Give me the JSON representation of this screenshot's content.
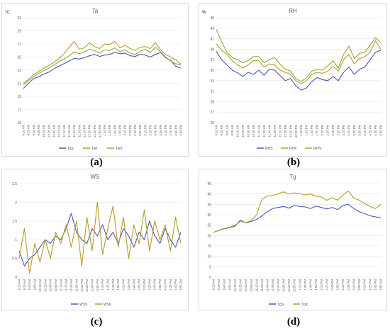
{
  "sublabels": [
    "(a)",
    "(b)",
    "(c)",
    "(d)"
  ],
  "colors": {
    "blue": "#4f57b4",
    "gold": "#b99a2a",
    "green": "#94a83a",
    "grid": "#e3e3e3",
    "text": "#595959"
  },
  "time_labels": [
    "9:10 AM",
    "9:25 AM",
    "9:40 AM",
    "9:55 AM",
    "10:10 AM",
    "10:25 AM",
    "10:40 AM",
    "10:55 AM",
    "11:10 AM",
    "11:25 AM",
    "11:40 AM",
    "11:55 AM",
    "12:10 PM",
    "12:25 PM",
    "12:40 PM",
    "12:55 PM",
    "1:10 PM",
    "1:25 PM",
    "1:40 PM",
    "1:55 PM",
    "2:10 PM",
    "2:25 PM",
    "2:40 PM",
    "2:55 PM",
    "3:10 PM",
    "3:25 PM",
    "3:40 PM",
    "3:55 PM",
    "4:10 PM",
    "4:25 PM",
    "4:40 PM",
    "4:55 PM"
  ],
  "chart_data": [
    {
      "type": "line",
      "title": "Ta",
      "unit": "°C",
      "ylim": [
        15,
        31
      ],
      "yticks": [
        15,
        17,
        19,
        21,
        23,
        25,
        27,
        29,
        31
      ],
      "grid": true,
      "legend": "bottom",
      "x": [
        "9:10 AM",
        "9:25 AM",
        "9:40 AM",
        "9:55 AM",
        "10:10 AM",
        "10:25 AM",
        "10:40 AM",
        "10:55 AM",
        "11:10 AM",
        "11:25 AM",
        "11:40 AM",
        "11:55 AM",
        "12:10 PM",
        "12:25 PM",
        "12:40 PM",
        "12:55 PM",
        "1:10 PM",
        "1:25 PM",
        "1:40 PM",
        "1:55 PM",
        "2:10 PM",
        "2:25 PM",
        "2:40 PM",
        "2:55 PM",
        "3:10 PM",
        "3:25 PM",
        "3:40 PM",
        "3:55 PM",
        "4:10 PM",
        "4:25 PM",
        "4:40 PM",
        "4:55 PM"
      ],
      "series": [
        {
          "name": "TaS",
          "color": "#4f57b4",
          "values": [
            20.2,
            21.0,
            21.7,
            22.0,
            22.4,
            22.7,
            23.2,
            23.6,
            24.0,
            24.4,
            24.8,
            24.7,
            24.9,
            25.2,
            25.4,
            25.1,
            25.3,
            25.4,
            25.7,
            25.5,
            25.6,
            25.2,
            25.1,
            25.4,
            25.3,
            25.0,
            25.4,
            25.7,
            24.9,
            24.5,
            23.6,
            23.3
          ]
        },
        {
          "name": "TaK",
          "color": "#b99a2a",
          "values": [
            21.0,
            21.6,
            22.3,
            22.8,
            23.3,
            23.7,
            24.2,
            24.8,
            25.5,
            26.5,
            27.4,
            26.2,
            26.4,
            27.2,
            26.6,
            26.3,
            27.0,
            26.9,
            27.4,
            26.4,
            26.8,
            26.3,
            26.0,
            26.5,
            26.6,
            26.3,
            27.2,
            26.1,
            25.4,
            25.0,
            24.6,
            23.9
          ]
        },
        {
          "name": "TaN",
          "color": "#94a83a",
          "values": [
            20.8,
            21.4,
            22.0,
            22.5,
            22.9,
            23.3,
            23.8,
            24.3,
            24.7,
            25.2,
            25.8,
            25.5,
            25.8,
            26.2,
            26.0,
            25.6,
            26.1,
            26.0,
            26.4,
            25.8,
            26.1,
            25.6,
            25.4,
            25.9,
            26.2,
            25.7,
            26.5,
            25.8,
            25.0,
            24.4,
            24.0,
            23.8
          ]
        }
      ]
    },
    {
      "type": "line",
      "title": "RH",
      "unit": "%",
      "ylim": [
        25,
        45
      ],
      "yticks": [
        25,
        27,
        29,
        31,
        33,
        35,
        37,
        39,
        41,
        43,
        45
      ],
      "grid": true,
      "legend": "bottom",
      "x": [
        "9:10 AM",
        "9:25 AM",
        "9:40 AM",
        "9:55 AM",
        "10:10 AM",
        "10:25 AM",
        "10:40 AM",
        "10:55 AM",
        "11:10 AM",
        "11:25 AM",
        "11:40 AM",
        "11:55 AM",
        "12:10 PM",
        "12:25 PM",
        "12:40 PM",
        "12:55 PM",
        "1:10 PM",
        "1:25 PM",
        "1:40 PM",
        "1:55 PM",
        "2:10 PM",
        "2:25 PM",
        "2:40 PM",
        "2:55 PM",
        "3:10 PM",
        "3:25 PM",
        "3:40 PM",
        "3:55 PM",
        "4:10 PM",
        "4:25 PM",
        "4:40 PM",
        "4:55 PM"
      ],
      "series": [
        {
          "name": "RHS",
          "color": "#4f57b4",
          "values": [
            38.6,
            37.0,
            36.0,
            35.0,
            34.5,
            33.8,
            34.6,
            34.2,
            35.0,
            34.0,
            35.2,
            35.0,
            34.0,
            33.0,
            33.4,
            32.0,
            31.2,
            31.6,
            32.8,
            33.6,
            33.2,
            33.0,
            33.8,
            33.0,
            34.6,
            35.6,
            34.2,
            35.2,
            35.6,
            37.0,
            38.4,
            38.8
          ]
        },
        {
          "name": "RHK",
          "color": "#b99a2a",
          "values": [
            40.0,
            38.8,
            38.0,
            36.8,
            36.0,
            35.4,
            36.0,
            36.8,
            36.8,
            35.6,
            36.2,
            36.0,
            35.0,
            34.6,
            34.2,
            33.0,
            32.4,
            33.0,
            34.2,
            34.6,
            34.4,
            34.8,
            35.8,
            34.8,
            37.0,
            38.0,
            36.2,
            37.2,
            37.6,
            38.4,
            40.6,
            39.0
          ]
        },
        {
          "name": "RHN",
          "color": "#94a83a",
          "values": [
            42.8,
            40.4,
            38.4,
            37.4,
            37.0,
            36.4,
            36.8,
            37.6,
            37.6,
            36.4,
            37.0,
            37.4,
            36.2,
            35.2,
            34.8,
            33.4,
            32.8,
            33.6,
            34.8,
            35.2,
            35.0,
            35.8,
            36.8,
            35.4,
            38.0,
            39.6,
            37.2,
            38.2,
            38.4,
            39.8,
            41.2,
            40.2
          ]
        }
      ]
    },
    {
      "type": "line",
      "title": "WS",
      "unit": "",
      "ylim": [
        0,
        2.5
      ],
      "yticks": [
        0,
        0.5,
        1,
        1.5,
        2,
        2.5
      ],
      "grid": true,
      "legend": "bottom",
      "x": [
        "9:10 AM",
        "9:25 AM",
        "9:40 AM",
        "9:55 AM",
        "10:10 AM",
        "10:25 AM",
        "10:40 AM",
        "10:55 AM",
        "11:10 AM",
        "11:25 AM",
        "11:40 AM",
        "11:55 AM",
        "12:10 PM",
        "12:25 PM",
        "12:40 PM",
        "12:55 PM",
        "1:10 PM",
        "1:25 PM",
        "1:40 PM",
        "1:55 PM",
        "2:10 PM",
        "2:25 PM",
        "2:40 PM",
        "2:55 PM",
        "3:10 PM",
        "3:25 PM",
        "3:40 PM",
        "3:55 PM",
        "4:10 PM",
        "4:25 PM",
        "4:40 PM",
        "4:55 PM"
      ],
      "series": [
        {
          "name": "WSS",
          "color": "#4f57b4",
          "values": [
            0.7,
            0.3,
            0.5,
            0.6,
            0.8,
            1.0,
            0.9,
            1.1,
            1.0,
            1.3,
            1.7,
            1.2,
            1.0,
            0.9,
            1.3,
            1.1,
            1.4,
            1.0,
            1.2,
            0.9,
            1.3,
            1.1,
            0.8,
            1.2,
            1.0,
            1.5,
            1.1,
            0.9,
            1.3,
            1.0,
            0.8,
            1.2
          ]
        },
        {
          "name": "WSK",
          "color": "#b99a2a",
          "values": [
            0.5,
            1.3,
            0.1,
            0.9,
            0.4,
            1.0,
            0.5,
            1.2,
            0.9,
            1.4,
            0.8,
            1.5,
            0.3,
            1.6,
            0.7,
            2.0,
            0.6,
            1.3,
            1.9,
            0.8,
            1.6,
            0.5,
            1.4,
            0.9,
            1.8,
            0.7,
            1.5,
            1.0,
            1.4,
            0.7,
            1.6,
            0.9
          ]
        }
      ]
    },
    {
      "type": "line",
      "title": "Tg",
      "unit": "",
      "ylim": [
        0,
        45
      ],
      "yticks": [
        0,
        5,
        10,
        15,
        20,
        25,
        30,
        35,
        40,
        45
      ],
      "grid": true,
      "legend": "bottom",
      "x": [
        "9:10 AM",
        "9:25 AM",
        "9:40 AM",
        "9:55 AM",
        "10:10 AM",
        "10:25 AM",
        "10:40 AM",
        "10:55 AM",
        "11:10 AM",
        "11:25 AM",
        "11:40 AM",
        "11:55 AM",
        "12:10 PM",
        "12:25 PM",
        "12:40 PM",
        "12:55 PM",
        "1:10 PM",
        "1:25 PM",
        "1:40 PM",
        "1:55 PM",
        "2:10 PM",
        "2:25 PM",
        "2:40 PM",
        "2:55 PM",
        "3:10 PM",
        "3:25 PM",
        "3:40 PM",
        "3:55 PM",
        "4:10 PM",
        "4:25 PM",
        "4:40 PM",
        "4:55 PM"
      ],
      "series": [
        {
          "name": "TgS",
          "color": "#4f57b4",
          "values": [
            21.5,
            22.5,
            23.2,
            23.8,
            24.5,
            27.5,
            26.0,
            26.8,
            27.8,
            29.5,
            31.5,
            33.0,
            33.5,
            34.0,
            33.2,
            34.5,
            34.0,
            33.8,
            33.0,
            34.2,
            33.5,
            32.8,
            33.5,
            32.5,
            34.5,
            35.0,
            33.0,
            31.5,
            30.5,
            29.5,
            29.0,
            28.5
          ]
        },
        {
          "name": "TgK",
          "color": "#b99a2a",
          "values": [
            21.5,
            22.6,
            23.4,
            24.0,
            25.0,
            26.8,
            26.2,
            27.2,
            30.0,
            37.5,
            39.0,
            39.2,
            40.2,
            41.0,
            40.0,
            40.5,
            40.2,
            39.5,
            40.0,
            39.0,
            38.5,
            37.0,
            38.2,
            37.0,
            39.5,
            41.5,
            38.0,
            37.0,
            35.5,
            34.0,
            33.0,
            35.0
          ]
        }
      ]
    }
  ]
}
